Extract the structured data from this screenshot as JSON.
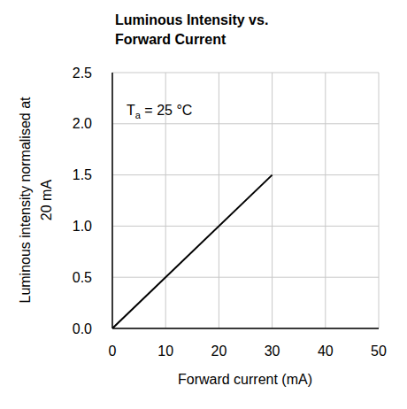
{
  "chart_data": {
    "type": "line",
    "title": [
      "Luminous Intensity vs.",
      "Forward Current"
    ],
    "x_label": "Forward current (mA)",
    "y_label": [
      "Luminous intensity normalised at",
      "20 mA"
    ],
    "annotation": "Ta = 25 °C",
    "x": [
      0,
      30
    ],
    "values": [
      0,
      1.5
    ],
    "color": "#000000",
    "xlim": [
      0,
      50
    ],
    "xticks": [
      0,
      10,
      20,
      30,
      40,
      50
    ],
    "ylim": [
      0,
      2.5
    ],
    "yticks": [
      {
        "value": 0,
        "label": "0.0"
      },
      {
        "value": 0.5,
        "label": "0.5"
      },
      {
        "value": 1,
        "label": "1.0"
      },
      {
        "value": 1.5,
        "label": "1.5"
      },
      {
        "value": 2,
        "label": "2.0"
      },
      {
        "value": 2.5,
        "label": "2.5"
      }
    ],
    "grid": true
  }
}
